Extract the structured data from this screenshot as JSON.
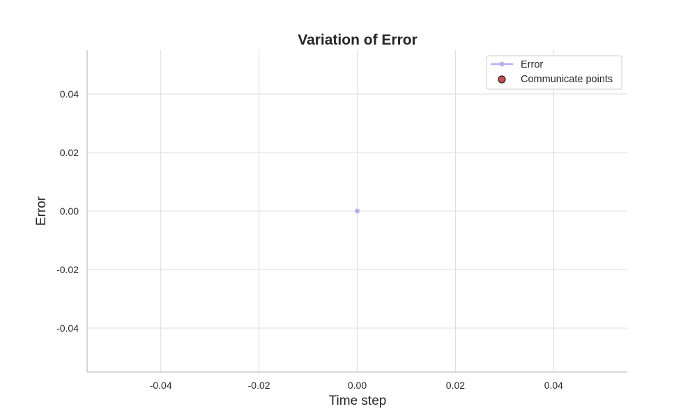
{
  "chart_data": {
    "type": "line",
    "title": "Variation of Error",
    "xlabel": "Time step",
    "ylabel": "Error",
    "xlim": [
      -0.055,
      0.055
    ],
    "ylim": [
      -0.055,
      0.055
    ],
    "xticks": [
      -0.04,
      -0.02,
      0.0,
      0.02,
      0.04
    ],
    "yticks": [
      -0.04,
      -0.02,
      0.0,
      0.02,
      0.04
    ],
    "xtick_labels": [
      "-0.04",
      "-0.02",
      "0.00",
      "0.02",
      "0.04"
    ],
    "ytick_labels": [
      "-0.04",
      "-0.02",
      "0.00",
      "0.02",
      "0.04"
    ],
    "grid": true,
    "legend_position": "top-right",
    "series": [
      {
        "name": "Error",
        "kind": "line",
        "color": "#b8aef2",
        "points": [
          {
            "x": 0.0,
            "y": 0.0
          }
        ]
      },
      {
        "name": "Communicate points",
        "kind": "scatter",
        "color": "#c44e52",
        "edge_color": "#222222",
        "points": []
      }
    ]
  }
}
